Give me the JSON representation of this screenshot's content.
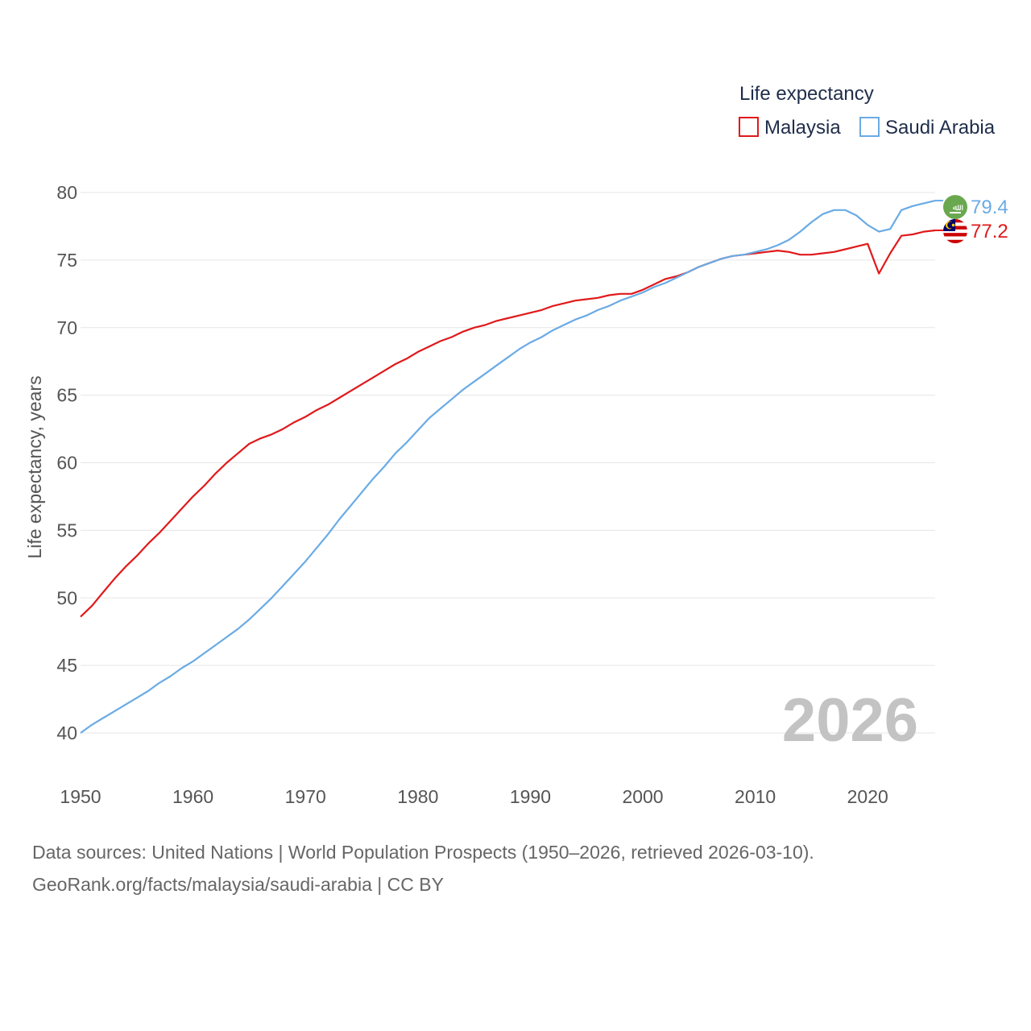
{
  "chart_data": {
    "type": "line",
    "title": "",
    "ylabel": "Life expectancy, years",
    "xlabel": "",
    "xlim": [
      1950,
      2026
    ],
    "ylim": [
      40,
      80
    ],
    "xticks": [
      "1950",
      "1960",
      "1970",
      "1980",
      "1990",
      "2000",
      "2010",
      "2020"
    ],
    "xtick_values": [
      1950,
      1960,
      1970,
      1980,
      1990,
      2000,
      2010,
      2020
    ],
    "yticks": [
      "40",
      "45",
      "50",
      "55",
      "60",
      "65",
      "70",
      "75",
      "80"
    ],
    "ytick_values": [
      40,
      45,
      50,
      55,
      60,
      65,
      70,
      75,
      80
    ],
    "grid": true,
    "legend": {
      "title": "Life expectancy",
      "position": "top-right"
    },
    "watermark_year": "2026",
    "x": [
      1950,
      1951,
      1952,
      1953,
      1954,
      1955,
      1956,
      1957,
      1958,
      1959,
      1960,
      1961,
      1962,
      1963,
      1964,
      1965,
      1966,
      1967,
      1968,
      1969,
      1970,
      1971,
      1972,
      1973,
      1974,
      1975,
      1976,
      1977,
      1978,
      1979,
      1980,
      1981,
      1982,
      1983,
      1984,
      1985,
      1986,
      1987,
      1988,
      1989,
      1990,
      1991,
      1992,
      1993,
      1994,
      1995,
      1996,
      1997,
      1998,
      1999,
      2000,
      2001,
      2002,
      2003,
      2004,
      2005,
      2006,
      2007,
      2008,
      2009,
      2010,
      2011,
      2012,
      2013,
      2014,
      2015,
      2016,
      2017,
      2018,
      2019,
      2020,
      2021,
      2022,
      2023,
      2024,
      2025,
      2026
    ],
    "series": [
      {
        "name": "Malaysia",
        "color": "#e0191b",
        "end_label": "77.2",
        "values": [
          48.6,
          49.4,
          50.4,
          51.4,
          52.3,
          53.1,
          54.0,
          54.8,
          55.7,
          56.6,
          57.5,
          58.3,
          59.2,
          60.0,
          60.7,
          61.4,
          61.8,
          62.1,
          62.5,
          63.0,
          63.4,
          63.9,
          64.3,
          64.8,
          65.3,
          65.8,
          66.3,
          66.8,
          67.3,
          67.7,
          68.2,
          68.6,
          69.0,
          69.3,
          69.7,
          70.0,
          70.2,
          70.5,
          70.7,
          70.9,
          71.1,
          71.3,
          71.6,
          71.8,
          72.0,
          72.1,
          72.2,
          72.4,
          72.5,
          72.5,
          72.8,
          73.2,
          73.6,
          73.8,
          74.1,
          74.5,
          74.8,
          75.1,
          75.3,
          75.4,
          75.5,
          75.6,
          75.7,
          75.6,
          75.4,
          75.4,
          75.5,
          75.6,
          75.8,
          76.0,
          76.2,
          74.0,
          75.5,
          76.8,
          76.9,
          77.1,
          77.2
        ]
      },
      {
        "name": "Saudi Arabia",
        "color": "#6aabe5",
        "end_label": "79.4",
        "values": [
          40.0,
          40.6,
          41.1,
          41.6,
          42.1,
          42.6,
          43.1,
          43.7,
          44.2,
          44.8,
          45.3,
          45.9,
          46.5,
          47.1,
          47.7,
          48.4,
          49.2,
          50.0,
          50.9,
          51.8,
          52.7,
          53.7,
          54.7,
          55.8,
          56.8,
          57.8,
          58.8,
          59.7,
          60.7,
          61.5,
          62.4,
          63.3,
          64.0,
          64.7,
          65.4,
          66.0,
          66.6,
          67.2,
          67.8,
          68.4,
          68.9,
          69.3,
          69.8,
          70.2,
          70.6,
          70.9,
          71.3,
          71.6,
          72.0,
          72.3,
          72.6,
          73.0,
          73.3,
          73.7,
          74.1,
          74.5,
          74.8,
          75.1,
          75.3,
          75.4,
          75.6,
          75.8,
          76.1,
          76.5,
          77.1,
          77.8,
          78.4,
          78.7,
          78.7,
          78.3,
          77.6,
          77.1,
          77.3,
          78.7,
          79.0,
          79.2,
          79.4
        ]
      }
    ]
  },
  "footer": {
    "line1": "Data sources: United Nations | World Population Prospects (1950–2026, retrieved 2026-03-10).",
    "line2": "GeoRank.org/facts/malaysia/saudi-arabia | CC BY"
  }
}
